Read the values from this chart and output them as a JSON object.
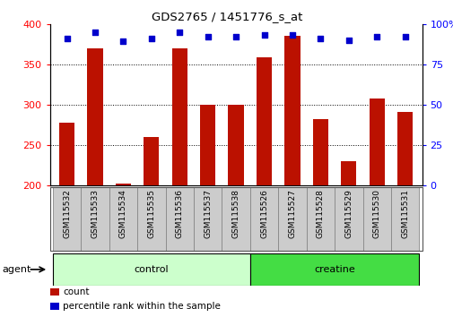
{
  "title": "GDS2765 / 1451776_s_at",
  "samples": [
    "GSM115532",
    "GSM115533",
    "GSM115534",
    "GSM115535",
    "GSM115536",
    "GSM115537",
    "GSM115538",
    "GSM115526",
    "GSM115527",
    "GSM115528",
    "GSM115529",
    "GSM115530",
    "GSM115531"
  ],
  "counts": [
    278,
    370,
    202,
    260,
    370,
    300,
    300,
    358,
    385,
    282,
    230,
    308,
    291
  ],
  "percentiles": [
    91,
    95,
    89,
    91,
    95,
    92,
    92,
    93,
    93,
    91,
    90,
    92,
    92
  ],
  "bar_bottom": 200,
  "ylim_left": [
    200,
    400
  ],
  "ylim_right": [
    0,
    100
  ],
  "yticks_left": [
    200,
    250,
    300,
    350,
    400
  ],
  "yticks_right": [
    0,
    25,
    50,
    75,
    100
  ],
  "groups": [
    {
      "label": "control",
      "indices": [
        0,
        1,
        2,
        3,
        4,
        5,
        6
      ],
      "color": "#ccffcc",
      "edge_color": "#000000"
    },
    {
      "label": "creatine",
      "indices": [
        7,
        8,
        9,
        10,
        11,
        12
      ],
      "color": "#44dd44",
      "edge_color": "#000000"
    }
  ],
  "group_row_label": "agent",
  "bar_color": "#bb1100",
  "dot_color": "#0000cc",
  "tick_label_bg": "#cccccc",
  "legend_items": [
    {
      "label": "count",
      "color": "#bb1100"
    },
    {
      "label": "percentile rank within the sample",
      "color": "#0000cc"
    }
  ]
}
